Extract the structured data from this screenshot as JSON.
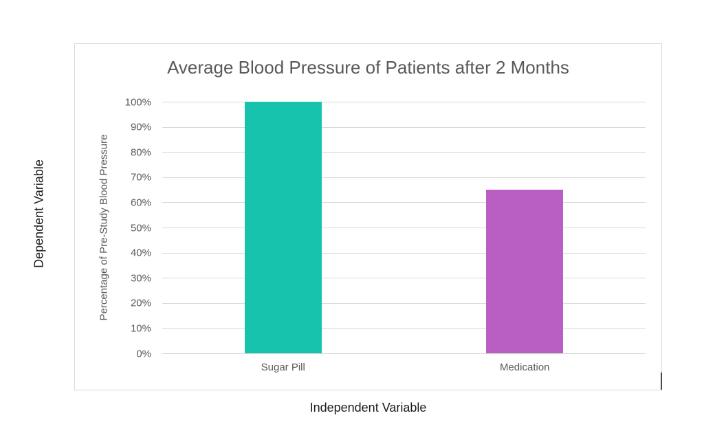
{
  "chart_data": {
    "type": "bar",
    "title": "Average Blood Pressure of Patients after 2 Months",
    "categories": [
      "Sugar Pill",
      "Medication"
    ],
    "values": [
      100,
      65
    ],
    "value_unit": "%",
    "ylabel": "Percentage of Pre-Study Blood Pressure",
    "xlabel": "Independent Variable",
    "outer_ylabel": "Dependent Variable",
    "ylim": [
      0,
      100
    ],
    "ytick_step": 10,
    "ytick_labels_top_to_bottom": [
      "100%",
      "90%",
      "80%",
      "70%",
      "60%",
      "50%",
      "40%",
      "30%",
      "20%",
      "10%",
      "0%"
    ],
    "grid": true,
    "legend": false,
    "bar_colors": [
      "#18C3AE",
      "#B95FC4"
    ],
    "colors": {
      "title_text": "#595959",
      "axis_text": "#595959",
      "outer_text": "#1a1a1a",
      "gridline": "#d9d9d9",
      "chart_border": "#d9d9d9",
      "background": "#ffffff"
    }
  }
}
